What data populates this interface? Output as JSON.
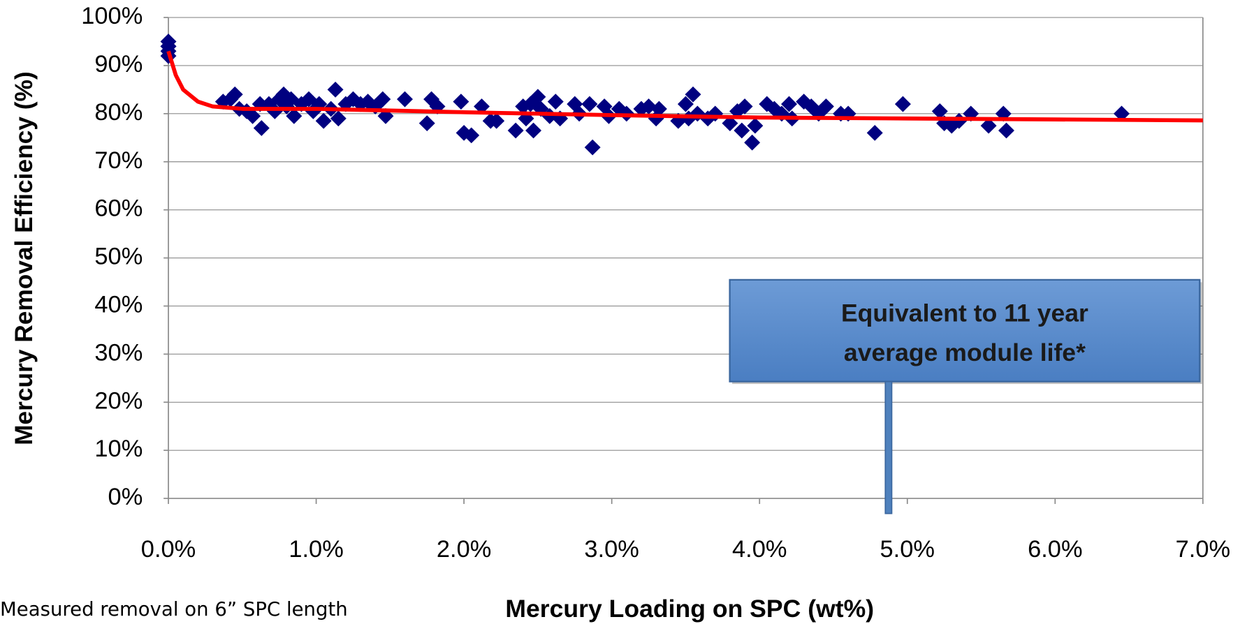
{
  "chart_data": {
    "type": "scatter",
    "xlabel": "Mercury Loading on SPC (wt%)",
    "ylabel": "Mercury Removal Efficiency (%)",
    "note": "Measured removal on 6” SPC length",
    "annotation": [
      "Equivalent to 11 year",
      "average module life*"
    ],
    "xlim": [
      0,
      7
    ],
    "ylim": [
      0,
      100
    ],
    "xticks": [
      {
        "value": 0,
        "label": "0.0%"
      },
      {
        "value": 1,
        "label": "1.0%"
      },
      {
        "value": 2,
        "label": "2.0%"
      },
      {
        "value": 3,
        "label": "3.0%"
      },
      {
        "value": 4,
        "label": "4.0%"
      },
      {
        "value": 5,
        "label": "5.0%"
      },
      {
        "value": 6,
        "label": "6.0%"
      },
      {
        "value": 7,
        "label": "7.0%"
      }
    ],
    "yticks": [
      {
        "value": 0,
        "label": "0%"
      },
      {
        "value": 10,
        "label": "10%"
      },
      {
        "value": 20,
        "label": "20%"
      },
      {
        "value": 30,
        "label": "30%"
      },
      {
        "value": 40,
        "label": "40%"
      },
      {
        "value": 50,
        "label": "50%"
      },
      {
        "value": 60,
        "label": "60%"
      },
      {
        "value": 70,
        "label": "70%"
      },
      {
        "value": 80,
        "label": "80%"
      },
      {
        "value": 90,
        "label": "90%"
      },
      {
        "value": 100,
        "label": "100%"
      }
    ],
    "grid": true,
    "series": [
      {
        "type": "scatter",
        "marker": "diamond",
        "color": "#000080",
        "x": [
          0,
          0,
          0,
          0,
          0,
          0.37,
          0.42,
          0.45,
          0.48,
          0.53,
          0.57,
          0.62,
          0.63,
          0.68,
          0.72,
          0.75,
          0.78,
          0.8,
          0.83,
          0.85,
          0.9,
          0.95,
          0.98,
          1.02,
          1.05,
          1.1,
          1.13,
          1.15,
          1.2,
          1.25,
          1.3,
          1.35,
          1.4,
          1.45,
          1.47,
          1.6,
          1.75,
          1.78,
          1.82,
          1.98,
          2.0,
          2.05,
          2.12,
          2.18,
          2.22,
          2.35,
          2.4,
          2.42,
          2.45,
          2.47,
          2.5,
          2.52,
          2.58,
          2.62,
          2.65,
          2.75,
          2.78,
          2.85,
          2.87,
          2.95,
          2.98,
          3.05,
          3.1,
          3.2,
          3.25,
          3.3,
          3.32,
          3.45,
          3.5,
          3.52,
          3.55,
          3.58,
          3.65,
          3.7,
          3.8,
          3.85,
          3.88,
          3.9,
          3.95,
          3.97,
          4.05,
          4.1,
          4.15,
          4.2,
          4.22,
          4.3,
          4.35,
          4.4,
          4.45,
          4.55,
          4.6,
          4.78,
          4.97,
          5.22,
          5.25,
          5.3,
          5.35,
          5.43,
          5.55,
          5.65,
          5.67,
          6.45
        ],
        "values": [
          95,
          94,
          93,
          92,
          94,
          82.5,
          83,
          84,
          81,
          80.5,
          79.5,
          82,
          77,
          82,
          80.5,
          83,
          84,
          81.5,
          83,
          79.5,
          82,
          83,
          80.5,
          82,
          78.5,
          81,
          85,
          79,
          82,
          83,
          82,
          82.5,
          81.5,
          83,
          79.5,
          83,
          78,
          83,
          81.5,
          82.5,
          76,
          75.5,
          81.5,
          78.5,
          78.5,
          76.5,
          81.5,
          79,
          82,
          76.5,
          83.5,
          81,
          79.5,
          82.5,
          79,
          82,
          80,
          82,
          73,
          81.5,
          79.5,
          81,
          80,
          81,
          81.5,
          79,
          81,
          78.5,
          82,
          79,
          84,
          80,
          79,
          80,
          78,
          80.5,
          76.5,
          81.5,
          74,
          77.5,
          82,
          81,
          80,
          82,
          79,
          82.5,
          81.5,
          80,
          81.5,
          80,
          80,
          76,
          82,
          80.5,
          78,
          77.5,
          78.5,
          80,
          77.5,
          80,
          76.5,
          80
        ]
      },
      {
        "type": "line",
        "color": "#ff0000",
        "x": [
          0,
          0.05,
          0.1,
          0.2,
          0.3,
          0.5,
          1,
          2,
          3,
          4,
          5,
          6,
          7
        ],
        "values": [
          93,
          88,
          85,
          82.5,
          81.5,
          81,
          81,
          80.3,
          79.7,
          79.2,
          79,
          78.8,
          78.6
        ]
      }
    ]
  }
}
